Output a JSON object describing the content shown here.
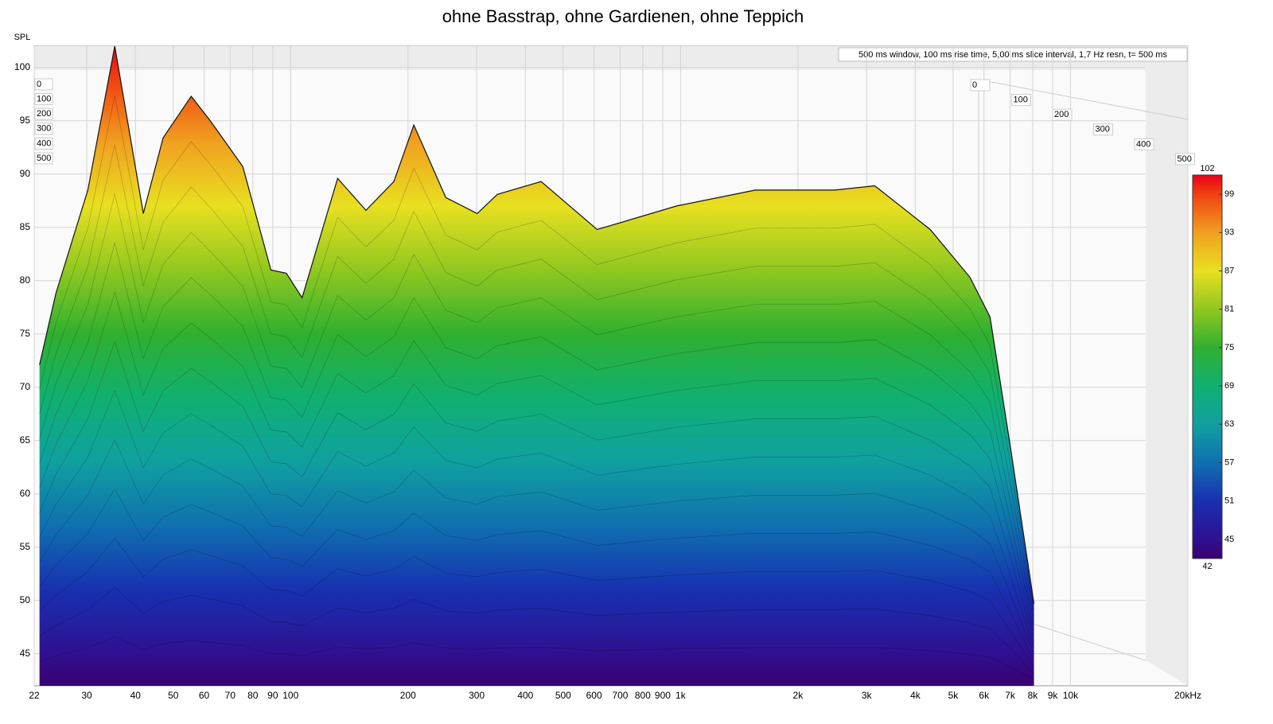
{
  "chart_data": {
    "type": "waterfall",
    "title": "ohne Basstrap, ohne Gardienen, ohne Teppich",
    "ylabel": "SPL",
    "annotation": "500 ms window, 100 ms rise time, 5,00 ms slice interval, 1,7 Hz resn, t= 500 ms",
    "log_x": true,
    "grid": true,
    "xlim": [
      22,
      20000
    ],
    "ylim": [
      42,
      102
    ],
    "xticks": [
      22,
      30,
      40,
      50,
      60,
      70,
      80,
      90,
      100,
      200,
      300,
      400,
      500,
      600,
      700,
      800,
      900,
      {
        "value": 1000,
        "label": "1k"
      },
      {
        "value": 2000,
        "label": "2k"
      },
      {
        "value": 3000,
        "label": "3k"
      },
      {
        "value": 4000,
        "label": "4k"
      },
      {
        "value": 5000,
        "label": "5k"
      },
      {
        "value": 6000,
        "label": "6k"
      },
      {
        "value": 7000,
        "label": "7k"
      },
      {
        "value": 8000,
        "label": "8k"
      },
      {
        "value": 9000,
        "label": "9k"
      },
      {
        "value": 10000,
        "label": "10k"
      },
      {
        "value": 20000,
        "label": "20kHz"
      }
    ],
    "yticks": [
      45,
      50,
      55,
      60,
      65,
      70,
      75,
      80,
      85,
      90,
      95,
      100
    ],
    "zticks": [
      0,
      100,
      200,
      300,
      400,
      500
    ],
    "x": [
      22.7,
      25,
      30.2,
      35.4,
      41.9,
      47.1,
      55.6,
      62.5,
      75.4,
      89,
      97.5,
      107,
      132,
      156,
      184,
      207,
      250,
      301,
      339,
      439,
      611,
      975,
      1555,
      2489,
      3148,
      4369,
      5527,
      6218,
      7000,
      8060
    ],
    "values": [
      72.1,
      78.8,
      88.5,
      102,
      86.3,
      93.4,
      97.3,
      94.9,
      90.7,
      81,
      80.7,
      78.4,
      89.6,
      86.6,
      89.3,
      94.6,
      87.8,
      86.3,
      88.1,
      89.3,
      84.8,
      87,
      88.5,
      88.5,
      88.9,
      84.8,
      80.3,
      76.6,
      64.6,
      49.7
    ],
    "colorbar": {
      "ticks": [
        42,
        45,
        51,
        57,
        63,
        69,
        75,
        81,
        87,
        93,
        99,
        102
      ],
      "colors": [
        "#3a0070",
        "#301090",
        "#1830b0",
        "#1070b0",
        "#10a0a0",
        "#10b070",
        "#30b030",
        "#90c820",
        "#e8e020",
        "#f0a020",
        "#f04010",
        "#e8001a"
      ]
    }
  }
}
